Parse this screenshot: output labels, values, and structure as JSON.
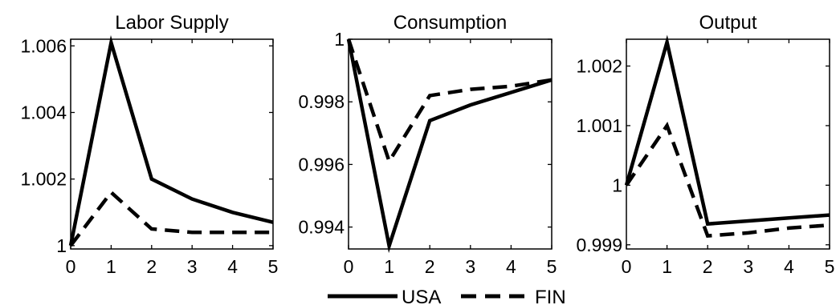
{
  "chart_data": [
    {
      "type": "line",
      "title": "Labor Supply",
      "x": [
        0,
        1,
        2,
        3,
        4,
        5
      ],
      "xlim": [
        0,
        5
      ],
      "ylim": [
        0.9999,
        1.0062
      ],
      "xticks": [
        "0",
        "1",
        "2",
        "3",
        "4",
        "5"
      ],
      "yticks": [
        {
          "value": 1.0,
          "label": "1"
        },
        {
          "value": 1.002,
          "label": "1.002"
        },
        {
          "value": 1.004,
          "label": "1.004"
        },
        {
          "value": 1.006,
          "label": "1.006"
        }
      ],
      "series": [
        {
          "name": "USA",
          "style": "solid",
          "values": [
            1.0,
            1.0061,
            1.002,
            1.0014,
            1.001,
            1.0007
          ]
        },
        {
          "name": "FIN",
          "style": "dashed",
          "values": [
            1.0,
            1.0016,
            1.0005,
            1.0004,
            1.0004,
            1.0004
          ]
        }
      ],
      "grid": false
    },
    {
      "type": "line",
      "title": "Consumption",
      "x": [
        0,
        1,
        2,
        3,
        4,
        5
      ],
      "xlim": [
        0,
        5
      ],
      "ylim": [
        0.9933,
        1.0
      ],
      "xticks": [
        "0",
        "1",
        "2",
        "3",
        "4",
        "5"
      ],
      "yticks": [
        {
          "value": 0.994,
          "label": "0.994"
        },
        {
          "value": 0.996,
          "label": "0.996"
        },
        {
          "value": 0.998,
          "label": "0.998"
        },
        {
          "value": 1.0,
          "label": "1"
        }
      ],
      "series": [
        {
          "name": "USA",
          "style": "solid",
          "values": [
            1.0,
            0.9934,
            0.9974,
            0.9979,
            0.9983,
            0.9987
          ]
        },
        {
          "name": "FIN",
          "style": "dashed",
          "values": [
            1.0,
            0.9961,
            0.9982,
            0.9984,
            0.9985,
            0.9987
          ]
        }
      ],
      "grid": false
    },
    {
      "type": "line",
      "title": "Output",
      "x": [
        0,
        1,
        2,
        3,
        4,
        5
      ],
      "xlim": [
        0,
        5
      ],
      "ylim": [
        0.99893,
        1.00245
      ],
      "xticks": [
        "0",
        "1",
        "2",
        "3",
        "4",
        "5"
      ],
      "yticks": [
        {
          "value": 0.999,
          "label": "0.999"
        },
        {
          "value": 1.0,
          "label": "1"
        },
        {
          "value": 1.001,
          "label": "1.001"
        },
        {
          "value": 1.002,
          "label": "1.002"
        }
      ],
      "series": [
        {
          "name": "USA",
          "style": "solid",
          "values": [
            1.0,
            1.0024,
            0.99935,
            0.9994,
            0.99945,
            0.9995
          ]
        },
        {
          "name": "FIN",
          "style": "dashed",
          "values": [
            1.0,
            1.001,
            0.99915,
            0.9992,
            0.99928,
            0.99933
          ]
        }
      ],
      "grid": false
    }
  ],
  "legend": {
    "position": "bottom-center",
    "entries": [
      {
        "label": "USA",
        "style": "solid"
      },
      {
        "label": "FIN",
        "style": "dashed"
      }
    ]
  }
}
